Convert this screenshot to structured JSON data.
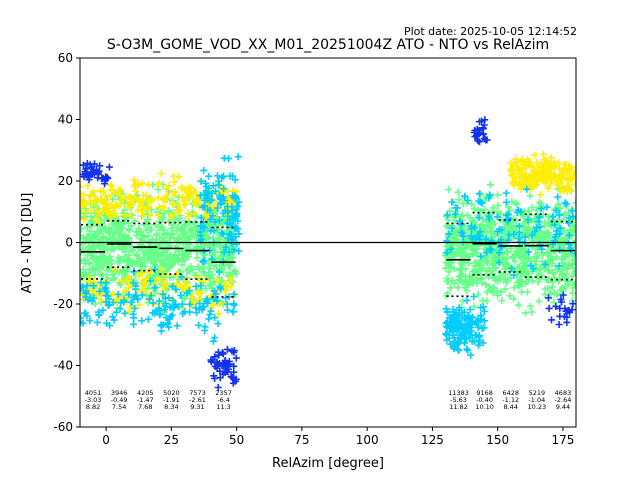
{
  "figure": {
    "plot_date": "Plot date: 2025-10-05 12:14:52",
    "title": "S-O3M_GOME_VOD_XX_M01_20251004Z ATO - NTO vs RelAzim"
  },
  "chart_data": {
    "type": "scatter",
    "title": "S-O3M_GOME_VOD_XX_M01_20251004Z ATO - NTO vs RelAzim",
    "xlabel": "RelAzim [degree]",
    "ylabel": "ATO - NTO [DU]",
    "xlim": [
      -10,
      180
    ],
    "ylim": [
      -60,
      60
    ],
    "xticks": [
      0,
      25,
      50,
      75,
      100,
      125,
      150,
      175
    ],
    "yticks": [
      -60,
      -40,
      -20,
      0,
      20,
      40,
      60
    ],
    "grid": false,
    "colors": {
      "dense": "#66ff88",
      "mid": "#ffee00",
      "cyan": "#00ccff",
      "blue": "#1133ee",
      "line": "#000000"
    },
    "bins": [
      {
        "x0": -10,
        "x1": 0,
        "count": "4051",
        "mean": -3.03,
        "std": 8.82,
        "mean_label": "-3.03",
        "std_label": "8.82"
      },
      {
        "x0": 0,
        "x1": 10,
        "count": "3946",
        "mean": -0.49,
        "std": 7.54,
        "mean_label": "-0.49",
        "std_label": "7.54"
      },
      {
        "x0": 10,
        "x1": 20,
        "count": "4205",
        "mean": -1.47,
        "std": 7.68,
        "mean_label": "-1.47",
        "std_label": "7.68"
      },
      {
        "x0": 20,
        "x1": 30,
        "count": "5020",
        "mean": -1.91,
        "std": 8.34,
        "mean_label": "-1.91",
        "std_label": "8.34"
      },
      {
        "x0": 30,
        "x1": 40,
        "count": "7573",
        "mean": -2.61,
        "std": 9.31,
        "mean_label": "-2.61",
        "std_label": "9.31"
      },
      {
        "x0": 40,
        "x1": 50,
        "count": "2357",
        "mean": -6.4,
        "std": 11.3,
        "mean_label": "-6.4",
        "std_label": "11.3"
      },
      {
        "x0": 130,
        "x1": 140,
        "count": "11383",
        "mean": -5.63,
        "std": 11.82,
        "mean_label": "-5.63",
        "std_label": "11.82"
      },
      {
        "x0": 140,
        "x1": 150,
        "count": "9168",
        "mean": -0.4,
        "std": 10.1,
        "mean_label": "-0.40",
        "std_label": "10.10"
      },
      {
        "x0": 150,
        "x1": 160,
        "count": "6428",
        "mean": -1.12,
        "std": 8.44,
        "mean_label": "-1.12",
        "std_label": "8.44"
      },
      {
        "x0": 160,
        "x1": 170,
        "count": "5219",
        "mean": -1.04,
        "std": 10.23,
        "mean_label": "-1.04",
        "std_label": "10.23"
      },
      {
        "x0": 170,
        "x1": 180,
        "count": "4683",
        "mean": -2.64,
        "std": 9.44,
        "mean_label": "-2.64",
        "std_label": "9.44"
      }
    ],
    "point_clusters": [
      {
        "x": [
          -10,
          50
        ],
        "y_center": -2,
        "y_spread": 24,
        "color": "dense",
        "n": 900
      },
      {
        "x": [
          -10,
          50
        ],
        "y_center": 14,
        "y_spread": 10,
        "color": "mid",
        "n": 220
      },
      {
        "x": [
          -10,
          50
        ],
        "y_center": -16,
        "y_spread": 10,
        "color": "mid",
        "n": 120
      },
      {
        "x": [
          -10,
          50
        ],
        "y_center": -20,
        "y_spread": 14,
        "color": "cyan",
        "n": 160
      },
      {
        "x": [
          36,
          51
        ],
        "y_center": 10,
        "y_spread": 22,
        "color": "cyan",
        "n": 120
      },
      {
        "x": [
          -9,
          2
        ],
        "y_center": 22,
        "y_spread": 5,
        "color": "blue",
        "n": 40
      },
      {
        "x": [
          40,
          50
        ],
        "y_center": -40,
        "y_spread": 10,
        "color": "blue",
        "n": 50
      },
      {
        "x": [
          130,
          180
        ],
        "y_center": -2,
        "y_spread": 24,
        "color": "dense",
        "n": 800
      },
      {
        "x": [
          155,
          180
        ],
        "y_center": 22,
        "y_spread": 8,
        "color": "mid",
        "n": 200
      },
      {
        "x": [
          130,
          145
        ],
        "y_center": -28,
        "y_spread": 12,
        "color": "cyan",
        "n": 140
      },
      {
        "x": [
          130,
          180
        ],
        "y_center": 5,
        "y_spread": 18,
        "color": "cyan",
        "n": 120
      },
      {
        "x": [
          141,
          146
        ],
        "y_center": 36,
        "y_spread": 6,
        "color": "blue",
        "n": 25
      },
      {
        "x": [
          168,
          180
        ],
        "y_center": -22,
        "y_spread": 8,
        "color": "blue",
        "n": 20
      }
    ]
  }
}
